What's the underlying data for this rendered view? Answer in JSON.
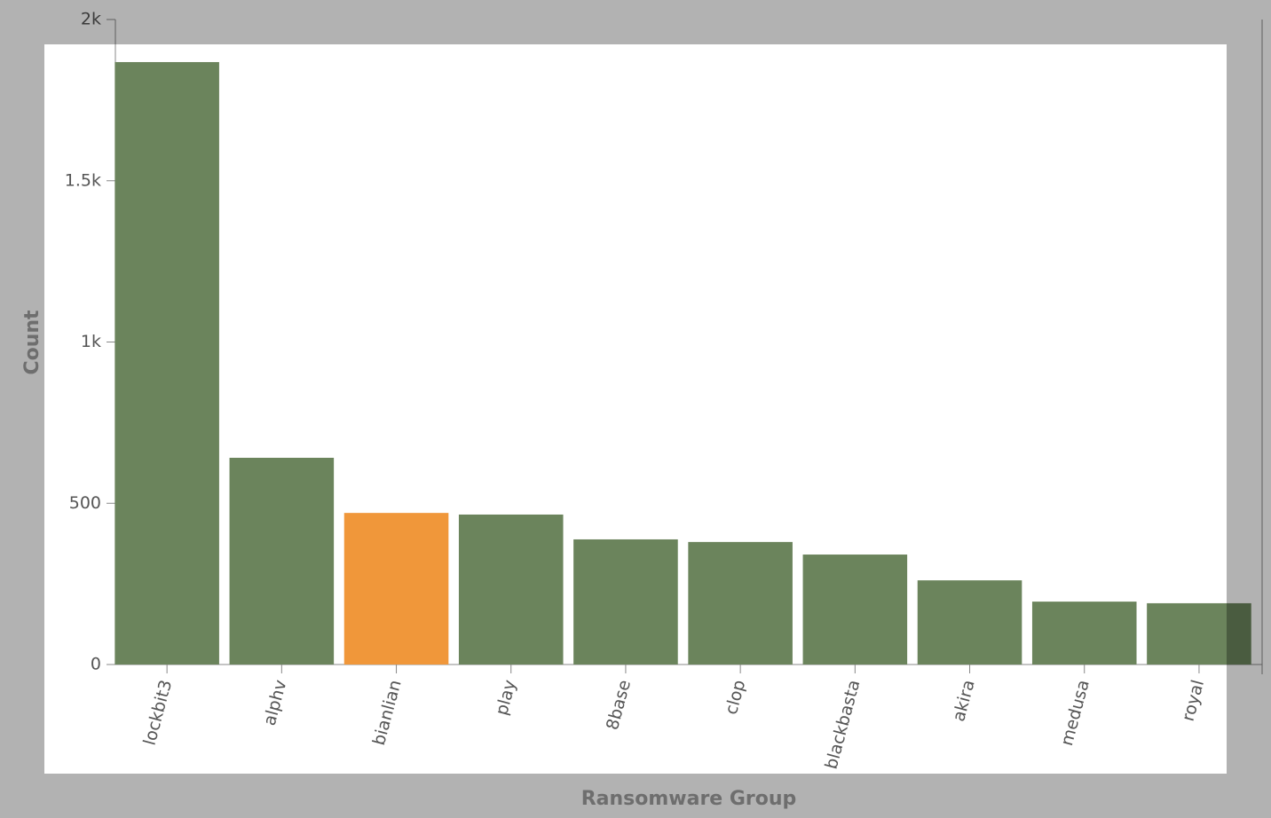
{
  "chart_data": {
    "type": "bar",
    "x_label": "Ransomware Group",
    "y_label": "Count",
    "categories": [
      "lockbit3",
      "alphv",
      "bianlian",
      "play",
      "8base",
      "clop",
      "blackbasta",
      "akira",
      "medusa",
      "royal"
    ],
    "values": [
      1868,
      641,
      470,
      465,
      388,
      380,
      341,
      261,
      195,
      190
    ],
    "colors": [
      "#6b845c",
      "#6b845c",
      "#f0973a",
      "#6b845c",
      "#6b845c",
      "#6b845c",
      "#6b845c",
      "#6b845c",
      "#6b845c",
      "#6b845c"
    ],
    "ylim": [
      0,
      2000
    ],
    "yticks": [
      0,
      500,
      {
        "value": 1000,
        "label": "1k"
      },
      {
        "value": 1500,
        "label": "1.5k"
      },
      {
        "value": 2000,
        "label": "2k"
      }
    ],
    "grid": false
  }
}
